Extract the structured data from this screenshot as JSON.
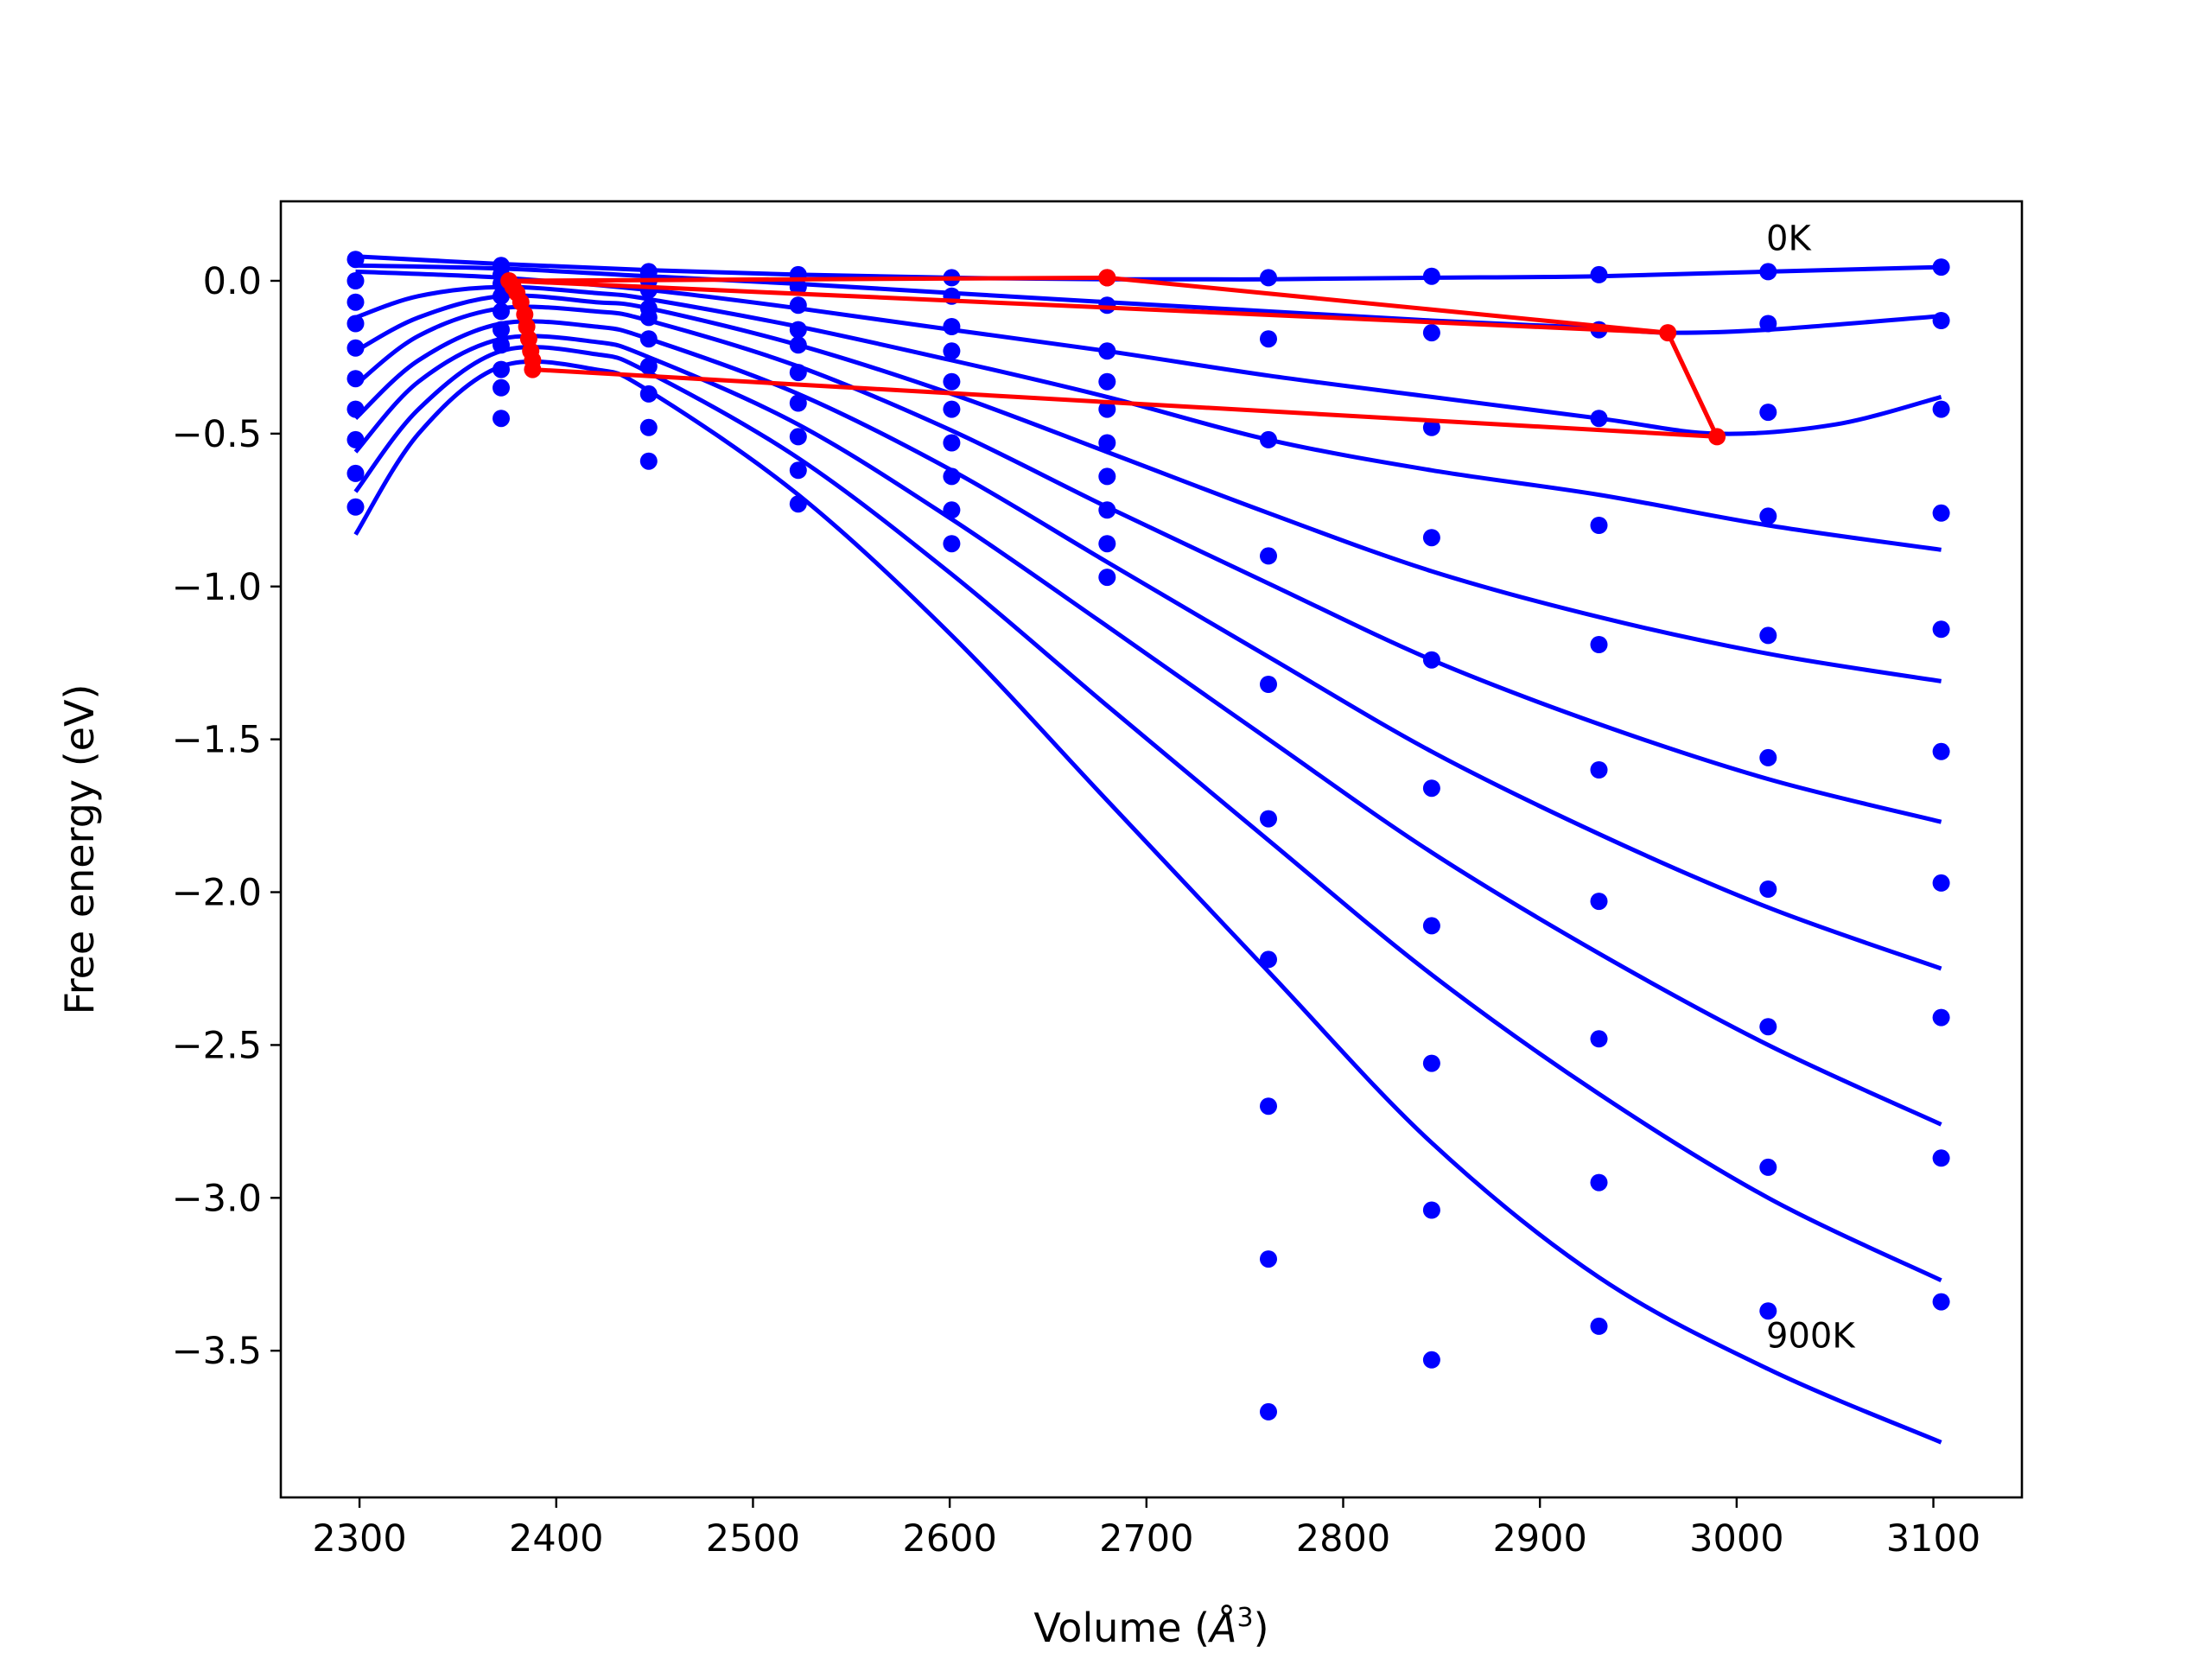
{
  "chart_data": {
    "type": "scatter",
    "xlabel_main": "Volume (",
    "xlabel_unit": "Å",
    "xlabel_exp": "3",
    "xlabel_close": ")",
    "ylabel": "Free energy (eV)",
    "xlim": [
      2260,
      3145
    ],
    "ylim": [
      -3.98,
      0.26
    ],
    "grid": false,
    "x_ticks": [
      2300,
      2400,
      2500,
      2600,
      2700,
      2800,
      2900,
      3000,
      3100
    ],
    "x_tick_labels": [
      "2300",
      "2400",
      "2500",
      "2600",
      "2700",
      "2800",
      "2900",
      "3000",
      "3100"
    ],
    "y_ticks": [
      0.0,
      -0.5,
      -1.0,
      -1.5,
      -2.0,
      -2.5,
      -3.0,
      -3.5
    ],
    "y_tick_labels": [
      "0.0",
      "−0.5",
      "−1.0",
      "−1.5",
      "−2.0",
      "−2.5",
      "−3.0",
      "−3.5"
    ],
    "annotations": [
      {
        "text": "0K",
        "x": 3015,
        "y": 0.1
      },
      {
        "text": "900K",
        "x": 3015,
        "y": -3.49
      }
    ],
    "point_volumes": [
      2298,
      2372,
      2447,
      2523,
      2601,
      2680,
      2762,
      2845,
      2930,
      3016,
      3104
    ],
    "series": [
      {
        "color": "#0000ff",
        "points": [
          0.07,
          0.05,
          0.03,
          0.02,
          0.01,
          0.01,
          0.01,
          0.015,
          0.02,
          0.03,
          0.045
        ],
        "curve": [
          [
            2298,
            0.08
          ],
          [
            2372,
            0.055
          ],
          [
            2447,
            0.035
          ],
          [
            2523,
            0.02
          ],
          [
            2601,
            0.01
          ],
          [
            2680,
            0.005
          ],
          [
            2762,
            0.005
          ],
          [
            2845,
            0.01
          ],
          [
            2930,
            0.015
          ],
          [
            3016,
            0.03
          ],
          [
            3104,
            0.045
          ]
        ]
      },
      {
        "color": "#0000ff",
        "points": [
          0.0,
          0.02,
          0.0,
          -0.02,
          -0.05,
          -0.08,
          -0.19,
          -0.17,
          -0.16,
          -0.14,
          -0.13
        ],
        "curve": [
          [
            2298,
            0.05
          ],
          [
            2372,
            0.04
          ],
          [
            2447,
            0.015
          ],
          [
            2523,
            -0.01
          ],
          [
            2601,
            -0.04
          ],
          [
            2680,
            -0.07
          ],
          [
            2762,
            -0.1
          ],
          [
            2845,
            -0.13
          ],
          [
            2930,
            -0.155
          ],
          [
            2965,
            -0.17
          ],
          [
            3016,
            -0.16
          ],
          [
            3104,
            -0.115
          ]
        ]
      },
      {
        "color": "#0000ff",
        "points": [
          -0.07,
          -0.01,
          -0.03,
          -0.08,
          -0.15,
          -0.23,
          -0.52,
          -0.48,
          -0.45,
          -0.43,
          -0.42
        ],
        "curve": [
          [
            2298,
            0.03
          ],
          [
            2372,
            0.01
          ],
          [
            2447,
            -0.03
          ],
          [
            2523,
            -0.09
          ],
          [
            2601,
            -0.16
          ],
          [
            2680,
            -0.23
          ],
          [
            2762,
            -0.31
          ],
          [
            2845,
            -0.38
          ],
          [
            2930,
            -0.45
          ],
          [
            2990,
            -0.5
          ],
          [
            3050,
            -0.47
          ],
          [
            3104,
            -0.38
          ]
        ]
      },
      {
        "color": "#0000ff",
        "points": [
          -0.14,
          -0.05,
          -0.09,
          -0.16,
          -0.23,
          -0.33,
          -0.9,
          -0.84,
          -0.8,
          -0.77,
          -0.76
        ],
        "curve": [
          [
            2298,
            -0.12
          ],
          [
            2330,
            -0.05
          ],
          [
            2372,
            -0.02
          ],
          [
            2420,
            -0.04
          ],
          [
            2447,
            -0.06
          ],
          [
            2523,
            -0.15
          ],
          [
            2601,
            -0.26
          ],
          [
            2680,
            -0.38
          ],
          [
            2762,
            -0.52
          ],
          [
            2845,
            -0.62
          ],
          [
            2930,
            -0.7
          ],
          [
            3016,
            -0.8
          ],
          [
            3104,
            -0.88
          ]
        ]
      },
      {
        "color": "#0000ff",
        "points": [
          -0.22,
          -0.1,
          -0.12,
          -0.21,
          -0.33,
          -0.42,
          -1.32,
          -1.24,
          -1.19,
          -1.16,
          -1.14
        ],
        "curve": [
          [
            2298,
            -0.23
          ],
          [
            2330,
            -0.12
          ],
          [
            2372,
            -0.05
          ],
          [
            2420,
            -0.07
          ],
          [
            2447,
            -0.09
          ],
          [
            2523,
            -0.21
          ],
          [
            2601,
            -0.37
          ],
          [
            2680,
            -0.56
          ],
          [
            2762,
            -0.76
          ],
          [
            2845,
            -0.95
          ],
          [
            2930,
            -1.1
          ],
          [
            3016,
            -1.22
          ],
          [
            3104,
            -1.31
          ]
        ]
      },
      {
        "color": "#0000ff",
        "points": [
          -0.32,
          -0.16,
          -0.19,
          -0.3,
          -0.42,
          -0.53,
          -1.76,
          -1.66,
          -1.6,
          -1.56,
          -1.54
        ],
        "curve": [
          [
            2298,
            -0.34
          ],
          [
            2330,
            -0.18
          ],
          [
            2372,
            -0.09
          ],
          [
            2420,
            -0.1
          ],
          [
            2447,
            -0.13
          ],
          [
            2523,
            -0.28
          ],
          [
            2601,
            -0.49
          ],
          [
            2680,
            -0.74
          ],
          [
            2762,
            -0.99
          ],
          [
            2845,
            -1.24
          ],
          [
            2930,
            -1.45
          ],
          [
            3016,
            -1.63
          ],
          [
            3104,
            -1.77
          ]
        ]
      },
      {
        "color": "#0000ff",
        "points": [
          -0.42,
          -0.21,
          -0.28,
          -0.4,
          -0.53,
          -0.64,
          -2.22,
          -2.11,
          -2.03,
          -1.99,
          -1.97
        ],
        "curve": [
          [
            2298,
            -0.45
          ],
          [
            2330,
            -0.26
          ],
          [
            2372,
            -0.14
          ],
          [
            2420,
            -0.15
          ],
          [
            2447,
            -0.19
          ],
          [
            2523,
            -0.37
          ],
          [
            2601,
            -0.62
          ],
          [
            2680,
            -0.92
          ],
          [
            2762,
            -1.23
          ],
          [
            2845,
            -1.54
          ],
          [
            2930,
            -1.81
          ],
          [
            3016,
            -2.05
          ],
          [
            3104,
            -2.25
          ]
        ]
      },
      {
        "color": "#0000ff",
        "points": [
          -0.52,
          -0.29,
          -0.37,
          -0.51,
          -0.64,
          -0.75,
          -2.7,
          -2.56,
          -2.48,
          -2.44,
          -2.41
        ],
        "curve": [
          [
            2298,
            -0.56
          ],
          [
            2330,
            -0.33
          ],
          [
            2372,
            -0.19
          ],
          [
            2420,
            -0.2
          ],
          [
            2447,
            -0.25
          ],
          [
            2523,
            -0.47
          ],
          [
            2601,
            -0.78
          ],
          [
            2680,
            -1.13
          ],
          [
            2762,
            -1.5
          ],
          [
            2845,
            -1.87
          ],
          [
            2930,
            -2.2
          ],
          [
            3016,
            -2.5
          ],
          [
            3104,
            -2.76
          ]
        ]
      },
      {
        "color": "#0000ff",
        "points": [
          -0.63,
          -0.35,
          -0.48,
          -0.62,
          -0.75,
          -0.86,
          -3.2,
          -3.04,
          -2.95,
          -2.9,
          -2.87
        ],
        "curve": [
          [
            2298,
            -0.69
          ],
          [
            2330,
            -0.42
          ],
          [
            2372,
            -0.23
          ],
          [
            2420,
            -0.24
          ],
          [
            2447,
            -0.3
          ],
          [
            2523,
            -0.58
          ],
          [
            2601,
            -0.96
          ],
          [
            2680,
            -1.39
          ],
          [
            2762,
            -1.83
          ],
          [
            2845,
            -2.27
          ],
          [
            2930,
            -2.66
          ],
          [
            3016,
            -3.0
          ],
          [
            3104,
            -3.27
          ]
        ]
      },
      {
        "color": "#0000ff",
        "points": [
          -0.74,
          -0.45,
          -0.59,
          -0.73,
          -0.86,
          -0.97,
          -3.7,
          -3.53,
          -3.42,
          -3.37,
          -3.34
        ],
        "curve": [
          [
            2298,
            -0.83
          ],
          [
            2330,
            -0.5
          ],
          [
            2372,
            -0.28
          ],
          [
            2420,
            -0.29
          ],
          [
            2447,
            -0.36
          ],
          [
            2523,
            -0.7
          ],
          [
            2601,
            -1.16
          ],
          [
            2680,
            -1.7
          ],
          [
            2762,
            -2.26
          ],
          [
            2845,
            -2.82
          ],
          [
            2930,
            -3.26
          ],
          [
            3016,
            -3.56
          ],
          [
            3104,
            -3.8
          ]
        ]
      }
    ],
    "red_path": {
      "color": "#ff0000",
      "points": [
        [
          2680,
          0.01
        ],
        [
          2965,
          -0.17
        ],
        [
          2990,
          -0.51
        ],
        [
          2388,
          -0.29
        ],
        [
          2388,
          -0.26
        ],
        [
          2387,
          -0.23
        ],
        [
          2386,
          -0.19
        ],
        [
          2385,
          -0.15
        ],
        [
          2384,
          -0.11
        ],
        [
          2382,
          -0.07
        ],
        [
          2380,
          -0.04
        ],
        [
          2378,
          -0.02
        ],
        [
          2376,
          0.0
        ],
        [
          2680,
          0.01
        ]
      ]
    },
    "red_cycle": {
      "color": "#ff0000",
      "points": [
        [
          2376,
          0.0
        ],
        [
          2965,
          -0.17
        ],
        [
          2990,
          -0.51
        ]
      ]
    }
  }
}
